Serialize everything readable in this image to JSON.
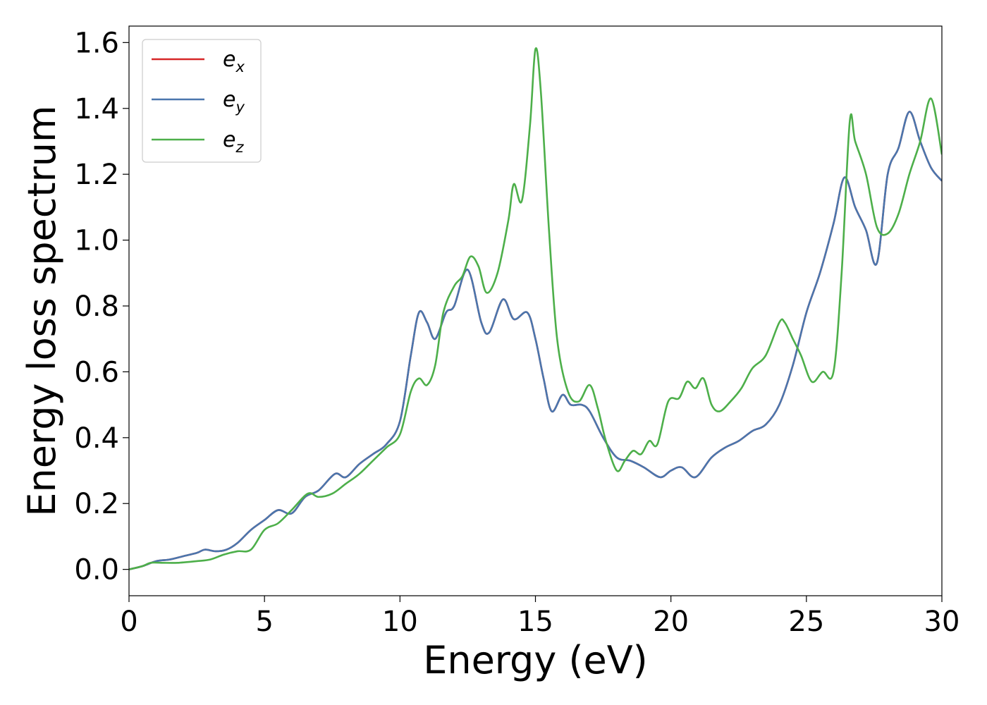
{
  "chart_data": {
    "type": "line",
    "title": "",
    "xlabel": "Energy (eV)",
    "ylabel": "Energy loss spectrum",
    "xlim": [
      0,
      30
    ],
    "ylim": [
      -0.08,
      1.65
    ],
    "xticks": [
      "0",
      "5",
      "10",
      "15",
      "20",
      "25",
      "30"
    ],
    "yticks": [
      "0.0",
      "0.2",
      "0.4",
      "0.6",
      "0.8",
      "1.0",
      "1.2",
      "1.4",
      "1.6"
    ],
    "grid": false,
    "legend": "top-left",
    "series": [
      {
        "name": "e_x",
        "label_base": "e",
        "label_sub": "x",
        "color": "#d62728",
        "x": [
          0,
          0.5,
          1,
          1.5,
          2,
          2.5,
          2.8,
          3.2,
          3.6,
          4,
          4.5,
          5,
          5.5,
          6,
          6.5,
          7,
          7.6,
          8,
          8.5,
          9,
          9.5,
          10,
          10.4,
          10.7,
          11,
          11.3,
          11.7,
          12,
          12.5,
          13,
          13.3,
          13.8,
          14.2,
          14.7,
          15,
          15.3,
          15.6,
          16,
          16.3,
          16.7,
          17,
          17.5,
          18,
          18.5,
          19,
          19.6,
          20,
          20.4,
          20.9,
          21.5,
          22,
          22.5,
          23,
          23.5,
          24,
          24.5,
          25,
          25.5,
          26,
          26.4,
          26.8,
          27.2,
          27.6,
          28,
          28.4,
          28.8,
          29.2,
          29.6,
          30
        ],
        "values": [
          0,
          0.01,
          0.025,
          0.03,
          0.04,
          0.05,
          0.06,
          0.055,
          0.06,
          0.08,
          0.12,
          0.15,
          0.18,
          0.17,
          0.22,
          0.24,
          0.29,
          0.28,
          0.32,
          0.35,
          0.38,
          0.45,
          0.65,
          0.78,
          0.75,
          0.7,
          0.78,
          0.8,
          0.91,
          0.75,
          0.72,
          0.82,
          0.76,
          0.78,
          0.7,
          0.58,
          0.48,
          0.53,
          0.5,
          0.5,
          0.48,
          0.4,
          0.34,
          0.33,
          0.31,
          0.28,
          0.3,
          0.31,
          0.28,
          0.34,
          0.37,
          0.39,
          0.42,
          0.44,
          0.5,
          0.62,
          0.78,
          0.9,
          1.05,
          1.19,
          1.1,
          1.03,
          0.93,
          1.2,
          1.28,
          1.39,
          1.3,
          1.22,
          1.18
        ]
      },
      {
        "name": "e_y",
        "label_base": "e",
        "label_sub": "y",
        "color": "#4a76ad",
        "x": [
          0,
          0.5,
          1,
          1.5,
          2,
          2.5,
          2.8,
          3.2,
          3.6,
          4,
          4.5,
          5,
          5.5,
          6,
          6.5,
          7,
          7.6,
          8,
          8.5,
          9,
          9.5,
          10,
          10.4,
          10.7,
          11,
          11.3,
          11.7,
          12,
          12.5,
          13,
          13.3,
          13.8,
          14.2,
          14.7,
          15,
          15.3,
          15.6,
          16,
          16.3,
          16.7,
          17,
          17.5,
          18,
          18.5,
          19,
          19.6,
          20,
          20.4,
          20.9,
          21.5,
          22,
          22.5,
          23,
          23.5,
          24,
          24.5,
          25,
          25.5,
          26,
          26.4,
          26.8,
          27.2,
          27.6,
          28,
          28.4,
          28.8,
          29.2,
          29.6,
          30
        ],
        "values": [
          0,
          0.01,
          0.025,
          0.03,
          0.04,
          0.05,
          0.06,
          0.055,
          0.06,
          0.08,
          0.12,
          0.15,
          0.18,
          0.17,
          0.22,
          0.24,
          0.29,
          0.28,
          0.32,
          0.35,
          0.38,
          0.45,
          0.65,
          0.78,
          0.75,
          0.7,
          0.78,
          0.8,
          0.91,
          0.75,
          0.72,
          0.82,
          0.76,
          0.78,
          0.7,
          0.58,
          0.48,
          0.53,
          0.5,
          0.5,
          0.48,
          0.4,
          0.34,
          0.33,
          0.31,
          0.28,
          0.3,
          0.31,
          0.28,
          0.34,
          0.37,
          0.39,
          0.42,
          0.44,
          0.5,
          0.62,
          0.78,
          0.9,
          1.05,
          1.19,
          1.1,
          1.03,
          0.93,
          1.2,
          1.28,
          1.39,
          1.3,
          1.22,
          1.18
        ]
      },
      {
        "name": "e_z",
        "label_base": "e",
        "label_sub": "z",
        "color": "#4daf4a",
        "x": [
          0,
          0.5,
          0.8,
          1.2,
          1.8,
          2.5,
          3,
          3.5,
          4,
          4.5,
          5,
          5.5,
          6,
          6.6,
          7,
          7.5,
          8,
          8.5,
          9,
          9.5,
          10,
          10.4,
          10.7,
          11,
          11.3,
          11.6,
          12,
          12.3,
          12.6,
          12.9,
          13.2,
          13.6,
          14,
          14.2,
          14.5,
          14.8,
          15,
          15.2,
          15.5,
          15.8,
          16.2,
          16.6,
          17,
          17.3,
          17.6,
          18,
          18.3,
          18.6,
          18.9,
          19.2,
          19.5,
          19.9,
          20.3,
          20.6,
          20.9,
          21.2,
          21.5,
          21.8,
          22.2,
          22.6,
          23,
          23.5,
          24,
          24.2,
          24.5,
          24.8,
          25.2,
          25.6,
          26,
          26.3,
          26.6,
          26.8,
          27.2,
          27.6,
          28,
          28.4,
          28.8,
          29.2,
          29.6,
          30
        ],
        "values": [
          0,
          0.01,
          0.02,
          0.02,
          0.02,
          0.025,
          0.03,
          0.045,
          0.055,
          0.06,
          0.12,
          0.14,
          0.18,
          0.23,
          0.22,
          0.23,
          0.26,
          0.29,
          0.33,
          0.37,
          0.41,
          0.54,
          0.58,
          0.56,
          0.62,
          0.78,
          0.86,
          0.89,
          0.95,
          0.92,
          0.84,
          0.9,
          1.06,
          1.17,
          1.12,
          1.35,
          1.58,
          1.45,
          1.03,
          0.7,
          0.54,
          0.51,
          0.56,
          0.49,
          0.39,
          0.3,
          0.33,
          0.36,
          0.35,
          0.39,
          0.38,
          0.51,
          0.52,
          0.57,
          0.55,
          0.58,
          0.5,
          0.48,
          0.51,
          0.55,
          0.61,
          0.65,
          0.75,
          0.75,
          0.7,
          0.65,
          0.57,
          0.6,
          0.6,
          0.9,
          1.36,
          1.3,
          1.2,
          1.04,
          1.02,
          1.08,
          1.2,
          1.3,
          1.43,
          1.26
        ]
      }
    ]
  }
}
